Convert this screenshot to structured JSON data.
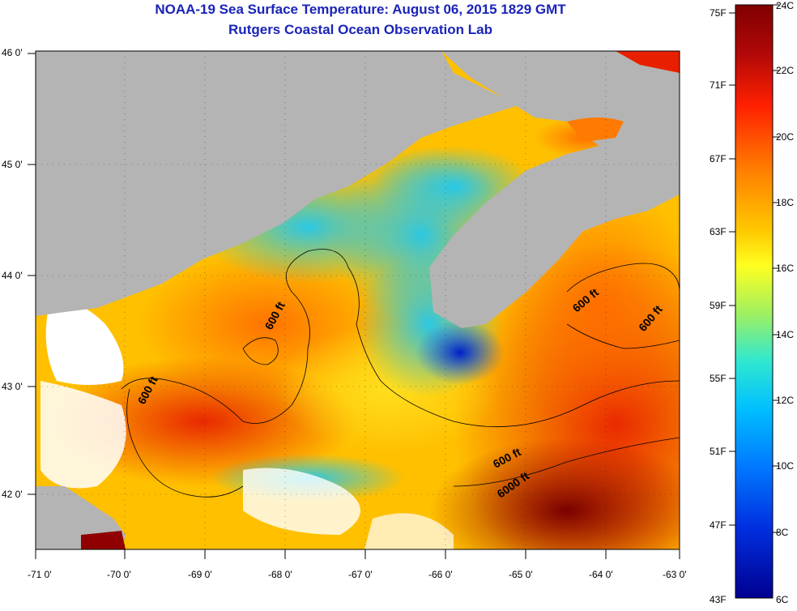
{
  "title": "NOAA-19 Sea Surface Temperature:  August 06, 2015 1829 GMT",
  "subtitle": "Rutgers Coastal Ocean Observation Lab",
  "map": {
    "lat_labels": [
      "46 0'",
      "45 0'",
      "44 0'",
      "43 0'",
      "42 0'"
    ],
    "lon_labels": [
      "-71 0'",
      "-70 0'",
      "-69 0'",
      "-68 0'",
      "-67 0'",
      "-66 0'",
      "-65 0'",
      "-64 0'",
      "-63 0'"
    ],
    "lat_range": [
      41.5,
      46.0
    ],
    "lon_range": [
      -71.0,
      -63.0
    ],
    "land_color": "#b4b4b4",
    "cloud_color": "#ffffff",
    "contour_labels": [
      "600 ft",
      "600 ft",
      "600 ft",
      "600 ft",
      "600 ft",
      "6000 ft"
    ]
  },
  "colorbar": {
    "f_labels": [
      "75F",
      "71F",
      "67F",
      "63F",
      "59F",
      "55F",
      "51F",
      "47F",
      "43F"
    ],
    "c_labels": [
      "24C",
      "22C",
      "20C",
      "18C",
      "16C",
      "14C",
      "12C",
      "10C",
      "8C",
      "6C"
    ],
    "range_c": [
      6,
      24
    ],
    "colors": [
      "#800000",
      "#c81010",
      "#ff3000",
      "#ff7a00",
      "#ffc000",
      "#ffff20",
      "#c8f040",
      "#40f0c0",
      "#00c0ff",
      "#0070ff",
      "#0020e0",
      "#000090"
    ]
  }
}
